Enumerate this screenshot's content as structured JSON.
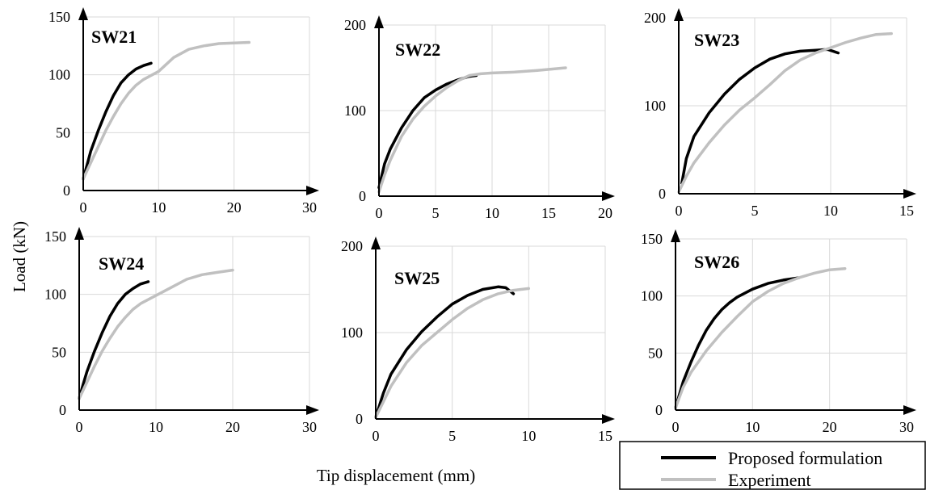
{
  "chart_data": [
    {
      "type": "line",
      "title": "SW21",
      "xlim": [
        0,
        30
      ],
      "ylim": [
        0,
        150
      ],
      "xticks": [
        "0",
        "10",
        "20",
        "30"
      ],
      "yticks": [
        "0",
        "50",
        "100",
        "150"
      ],
      "grid": true,
      "series": [
        {
          "name": "Proposed formulation",
          "color": "#000000",
          "points": [
            [
              0,
              10
            ],
            [
              0.5,
              22
            ],
            [
              1,
              34
            ],
            [
              2,
              52
            ],
            [
              3,
              68
            ],
            [
              4,
              82
            ],
            [
              5,
              93
            ],
            [
              6,
              100
            ],
            [
              7,
              105
            ],
            [
              8,
              108
            ],
            [
              9,
              110
            ]
          ]
        },
        {
          "name": "Experiment",
          "color": "#c0c0c0",
          "points": [
            [
              0,
              10
            ],
            [
              1,
              24
            ],
            [
              2,
              38
            ],
            [
              3,
              52
            ],
            [
              4,
              64
            ],
            [
              5,
              75
            ],
            [
              6,
              84
            ],
            [
              7,
              91
            ],
            [
              8,
              96
            ],
            [
              10,
              103
            ],
            [
              12,
              115
            ],
            [
              14,
              122
            ],
            [
              16,
              125
            ],
            [
              18,
              127
            ],
            [
              20,
              127.5
            ],
            [
              22,
              128
            ]
          ]
        }
      ]
    },
    {
      "type": "line",
      "title": "SW22",
      "xlim": [
        0,
        20
      ],
      "ylim": [
        0,
        200
      ],
      "xticks": [
        "0",
        "5",
        "10",
        "15",
        "20"
      ],
      "yticks": [
        "0",
        "100",
        "200"
      ],
      "grid": true,
      "series": [
        {
          "name": "Proposed formulation",
          "color": "#000000",
          "points": [
            [
              0,
              10
            ],
            [
              0.5,
              38
            ],
            [
              1,
              55
            ],
            [
              2,
              80
            ],
            [
              3,
              100
            ],
            [
              4,
              115
            ],
            [
              5,
              124
            ],
            [
              6,
              131
            ],
            [
              7,
              136
            ],
            [
              8,
              140
            ],
            [
              8.6,
              141
            ]
          ]
        },
        {
          "name": "Experiment",
          "color": "#c0c0c0",
          "points": [
            [
              0,
              5
            ],
            [
              0.5,
              25
            ],
            [
              1,
              42
            ],
            [
              2,
              70
            ],
            [
              3,
              90
            ],
            [
              4,
              105
            ],
            [
              5,
              117
            ],
            [
              6,
              127
            ],
            [
              7,
              135
            ],
            [
              8,
              141
            ],
            [
              9,
              143
            ],
            [
              10,
              144
            ],
            [
              12,
              145
            ],
            [
              14,
              147
            ],
            [
              16.5,
              150
            ]
          ]
        }
      ]
    },
    {
      "type": "line",
      "title": "SW23",
      "xlim": [
        0,
        15
      ],
      "ylim": [
        0,
        200
      ],
      "xticks": [
        "0",
        "5",
        "10",
        "15"
      ],
      "yticks": [
        "0",
        "100",
        "200"
      ],
      "grid": true,
      "series": [
        {
          "name": "Proposed formulation",
          "color": "#000000",
          "points": [
            [
              0.2,
              12
            ],
            [
              0.5,
              40
            ],
            [
              1,
              65
            ],
            [
              2,
              92
            ],
            [
              3,
              113
            ],
            [
              4,
              130
            ],
            [
              5,
              143
            ],
            [
              6,
              153
            ],
            [
              7,
              159
            ],
            [
              8,
              162
            ],
            [
              9,
              163
            ],
            [
              9.8,
              164
            ],
            [
              10.5,
              160
            ]
          ]
        },
        {
          "name": "Experiment",
          "color": "#c0c0c0",
          "points": [
            [
              0,
              2
            ],
            [
              0.5,
              20
            ],
            [
              1,
              35
            ],
            [
              2,
              58
            ],
            [
              3,
              78
            ],
            [
              4,
              95
            ],
            [
              5,
              109
            ],
            [
              6,
              124
            ],
            [
              7,
              140
            ],
            [
              8,
              152
            ],
            [
              9,
              160
            ],
            [
              10,
              166
            ],
            [
              11,
              172
            ],
            [
              12,
              177
            ],
            [
              13,
              181
            ],
            [
              14,
              182
            ]
          ]
        }
      ]
    },
    {
      "type": "line",
      "title": "SW24",
      "xlim": [
        0,
        30
      ],
      "ylim": [
        0,
        150
      ],
      "xticks": [
        "0",
        "10",
        "20",
        "30"
      ],
      "yticks": [
        "0",
        "50",
        "100",
        "150"
      ],
      "grid": true,
      "series": [
        {
          "name": "Proposed formulation",
          "color": "#000000",
          "points": [
            [
              0,
              10
            ],
            [
              0.5,
              22
            ],
            [
              1,
              33
            ],
            [
              2,
              51
            ],
            [
              3,
              67
            ],
            [
              4,
              81
            ],
            [
              5,
              92
            ],
            [
              6,
              100
            ],
            [
              7,
              105
            ],
            [
              8,
              109
            ],
            [
              9,
              111
            ]
          ]
        },
        {
          "name": "Experiment",
          "color": "#c0c0c0",
          "points": [
            [
              0,
              10
            ],
            [
              1,
              24
            ],
            [
              2,
              38
            ],
            [
              3,
              51
            ],
            [
              4,
              62
            ],
            [
              5,
              72
            ],
            [
              6,
              80
            ],
            [
              7,
              87
            ],
            [
              8,
              92
            ],
            [
              10,
              99
            ],
            [
              12,
              106
            ],
            [
              14,
              113
            ],
            [
              16,
              117
            ],
            [
              18,
              119
            ],
            [
              20,
              121
            ]
          ]
        }
      ]
    },
    {
      "type": "line",
      "title": "SW25",
      "xlim": [
        0,
        15
      ],
      "ylim": [
        0,
        200
      ],
      "xticks": [
        "0",
        "5",
        "10",
        "15"
      ],
      "yticks": [
        "0",
        "100",
        "200"
      ],
      "grid": true,
      "series": [
        {
          "name": "Proposed formulation",
          "color": "#000000",
          "points": [
            [
              0,
              2
            ],
            [
              0.5,
              30
            ],
            [
              1,
              52
            ],
            [
              2,
              80
            ],
            [
              3,
              101
            ],
            [
              4,
              118
            ],
            [
              5,
              133
            ],
            [
              6,
              143
            ],
            [
              7,
              150
            ],
            [
              8,
              153
            ],
            [
              8.5,
              152
            ],
            [
              9,
              145
            ]
          ]
        },
        {
          "name": "Experiment",
          "color": "#c0c0c0",
          "points": [
            [
              0,
              2
            ],
            [
              0.5,
              20
            ],
            [
              1,
              38
            ],
            [
              2,
              65
            ],
            [
              3,
              85
            ],
            [
              4,
              100
            ],
            [
              5,
              115
            ],
            [
              6,
              128
            ],
            [
              7,
              138
            ],
            [
              8,
              145
            ],
            [
              9,
              149
            ],
            [
              10,
              151
            ]
          ]
        }
      ]
    },
    {
      "type": "line",
      "title": "SW26",
      "xlim": [
        0,
        30
      ],
      "ylim": [
        0,
        150
      ],
      "xticks": [
        "0",
        "10",
        "20",
        "30"
      ],
      "yticks": [
        "0",
        "50",
        "100",
        "150"
      ],
      "grid": true,
      "series": [
        {
          "name": "Proposed formulation",
          "color": "#000000",
          "points": [
            [
              0,
              2
            ],
            [
              1,
              25
            ],
            [
              2,
              42
            ],
            [
              3,
              57
            ],
            [
              4,
              70
            ],
            [
              5,
              80
            ],
            [
              6,
              88
            ],
            [
              7,
              94
            ],
            [
              8,
              99
            ],
            [
              10,
              106
            ],
            [
              12,
              111
            ],
            [
              14,
              114
            ],
            [
              16,
              116
            ]
          ]
        },
        {
          "name": "Experiment",
          "color": "#c0c0c0",
          "points": [
            [
              0,
              2
            ],
            [
              1,
              20
            ],
            [
              2,
              33
            ],
            [
              4,
              52
            ],
            [
              6,
              68
            ],
            [
              8,
              82
            ],
            [
              10,
              95
            ],
            [
              12,
              104
            ],
            [
              14,
              111
            ],
            [
              16,
              116
            ],
            [
              18,
              120
            ],
            [
              20,
              123
            ],
            [
              22,
              124
            ]
          ]
        }
      ]
    }
  ],
  "axes": {
    "ylabel": "Load (kN)",
    "xlabel": "Tip displacement (mm)"
  },
  "legend": {
    "placement": "bottom-right",
    "items": [
      {
        "label": "Proposed formulation",
        "color": "#000000"
      },
      {
        "label": "Experiment",
        "color": "#c0c0c0"
      }
    ]
  }
}
